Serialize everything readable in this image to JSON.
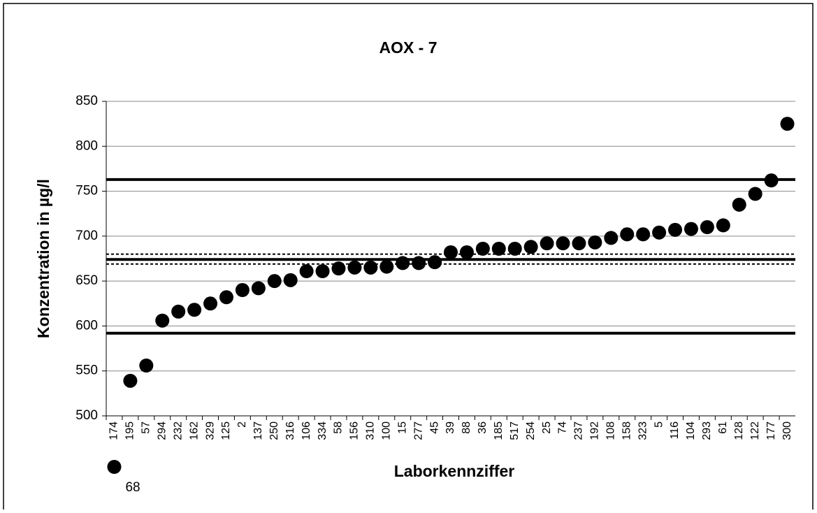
{
  "chart_data": {
    "type": "scatter",
    "title": "AOX - 7",
    "x_label": "Laborkennziffer",
    "y_label": "Konzentration in µg/l",
    "categories": [
      "174",
      "195",
      "57",
      "294",
      "232",
      "162",
      "329",
      "125",
      "2",
      "137",
      "250",
      "316",
      "106",
      "334",
      "58",
      "156",
      "310",
      "100",
      "15",
      "277",
      "45",
      "39",
      "88",
      "36",
      "185",
      "517",
      "254",
      "25",
      "74",
      "237",
      "192",
      "108",
      "158",
      "323",
      "5",
      "116",
      "104",
      "293",
      "61",
      "128",
      "122",
      "177",
      "300"
    ],
    "values": [
      68,
      539,
      556,
      606,
      616,
      618,
      625,
      632,
      640,
      642,
      650,
      651,
      661,
      661,
      664,
      665,
      665,
      666,
      670,
      670,
      671,
      682,
      682,
      686,
      686,
      686,
      688,
      692,
      692,
      692,
      693,
      698,
      702,
      702,
      704,
      707,
      708,
      710,
      712,
      735,
      747,
      762,
      825
    ],
    "value_labels": [
      "68",
      null,
      null,
      null,
      null,
      null,
      null,
      null,
      null,
      null,
      null,
      null,
      null,
      null,
      null,
      null,
      null,
      null,
      null,
      null,
      null,
      null,
      null,
      null,
      null,
      null,
      null,
      null,
      null,
      null,
      null,
      null,
      null,
      null,
      null,
      null,
      null,
      null,
      null,
      null,
      null,
      null,
      null
    ],
    "color": "#000000",
    "reference_lines": [
      {
        "value": 763,
        "style": "solid"
      },
      {
        "value": 674,
        "style": "solid"
      },
      {
        "value": 680,
        "style": "dotted"
      },
      {
        "value": 669,
        "style": "dotted"
      },
      {
        "value": 592,
        "style": "solid"
      }
    ],
    "ylim": [
      500,
      850
    ],
    "yticks": [
      500,
      550,
      600,
      650,
      700,
      750,
      800,
      850
    ],
    "grid": true
  }
}
